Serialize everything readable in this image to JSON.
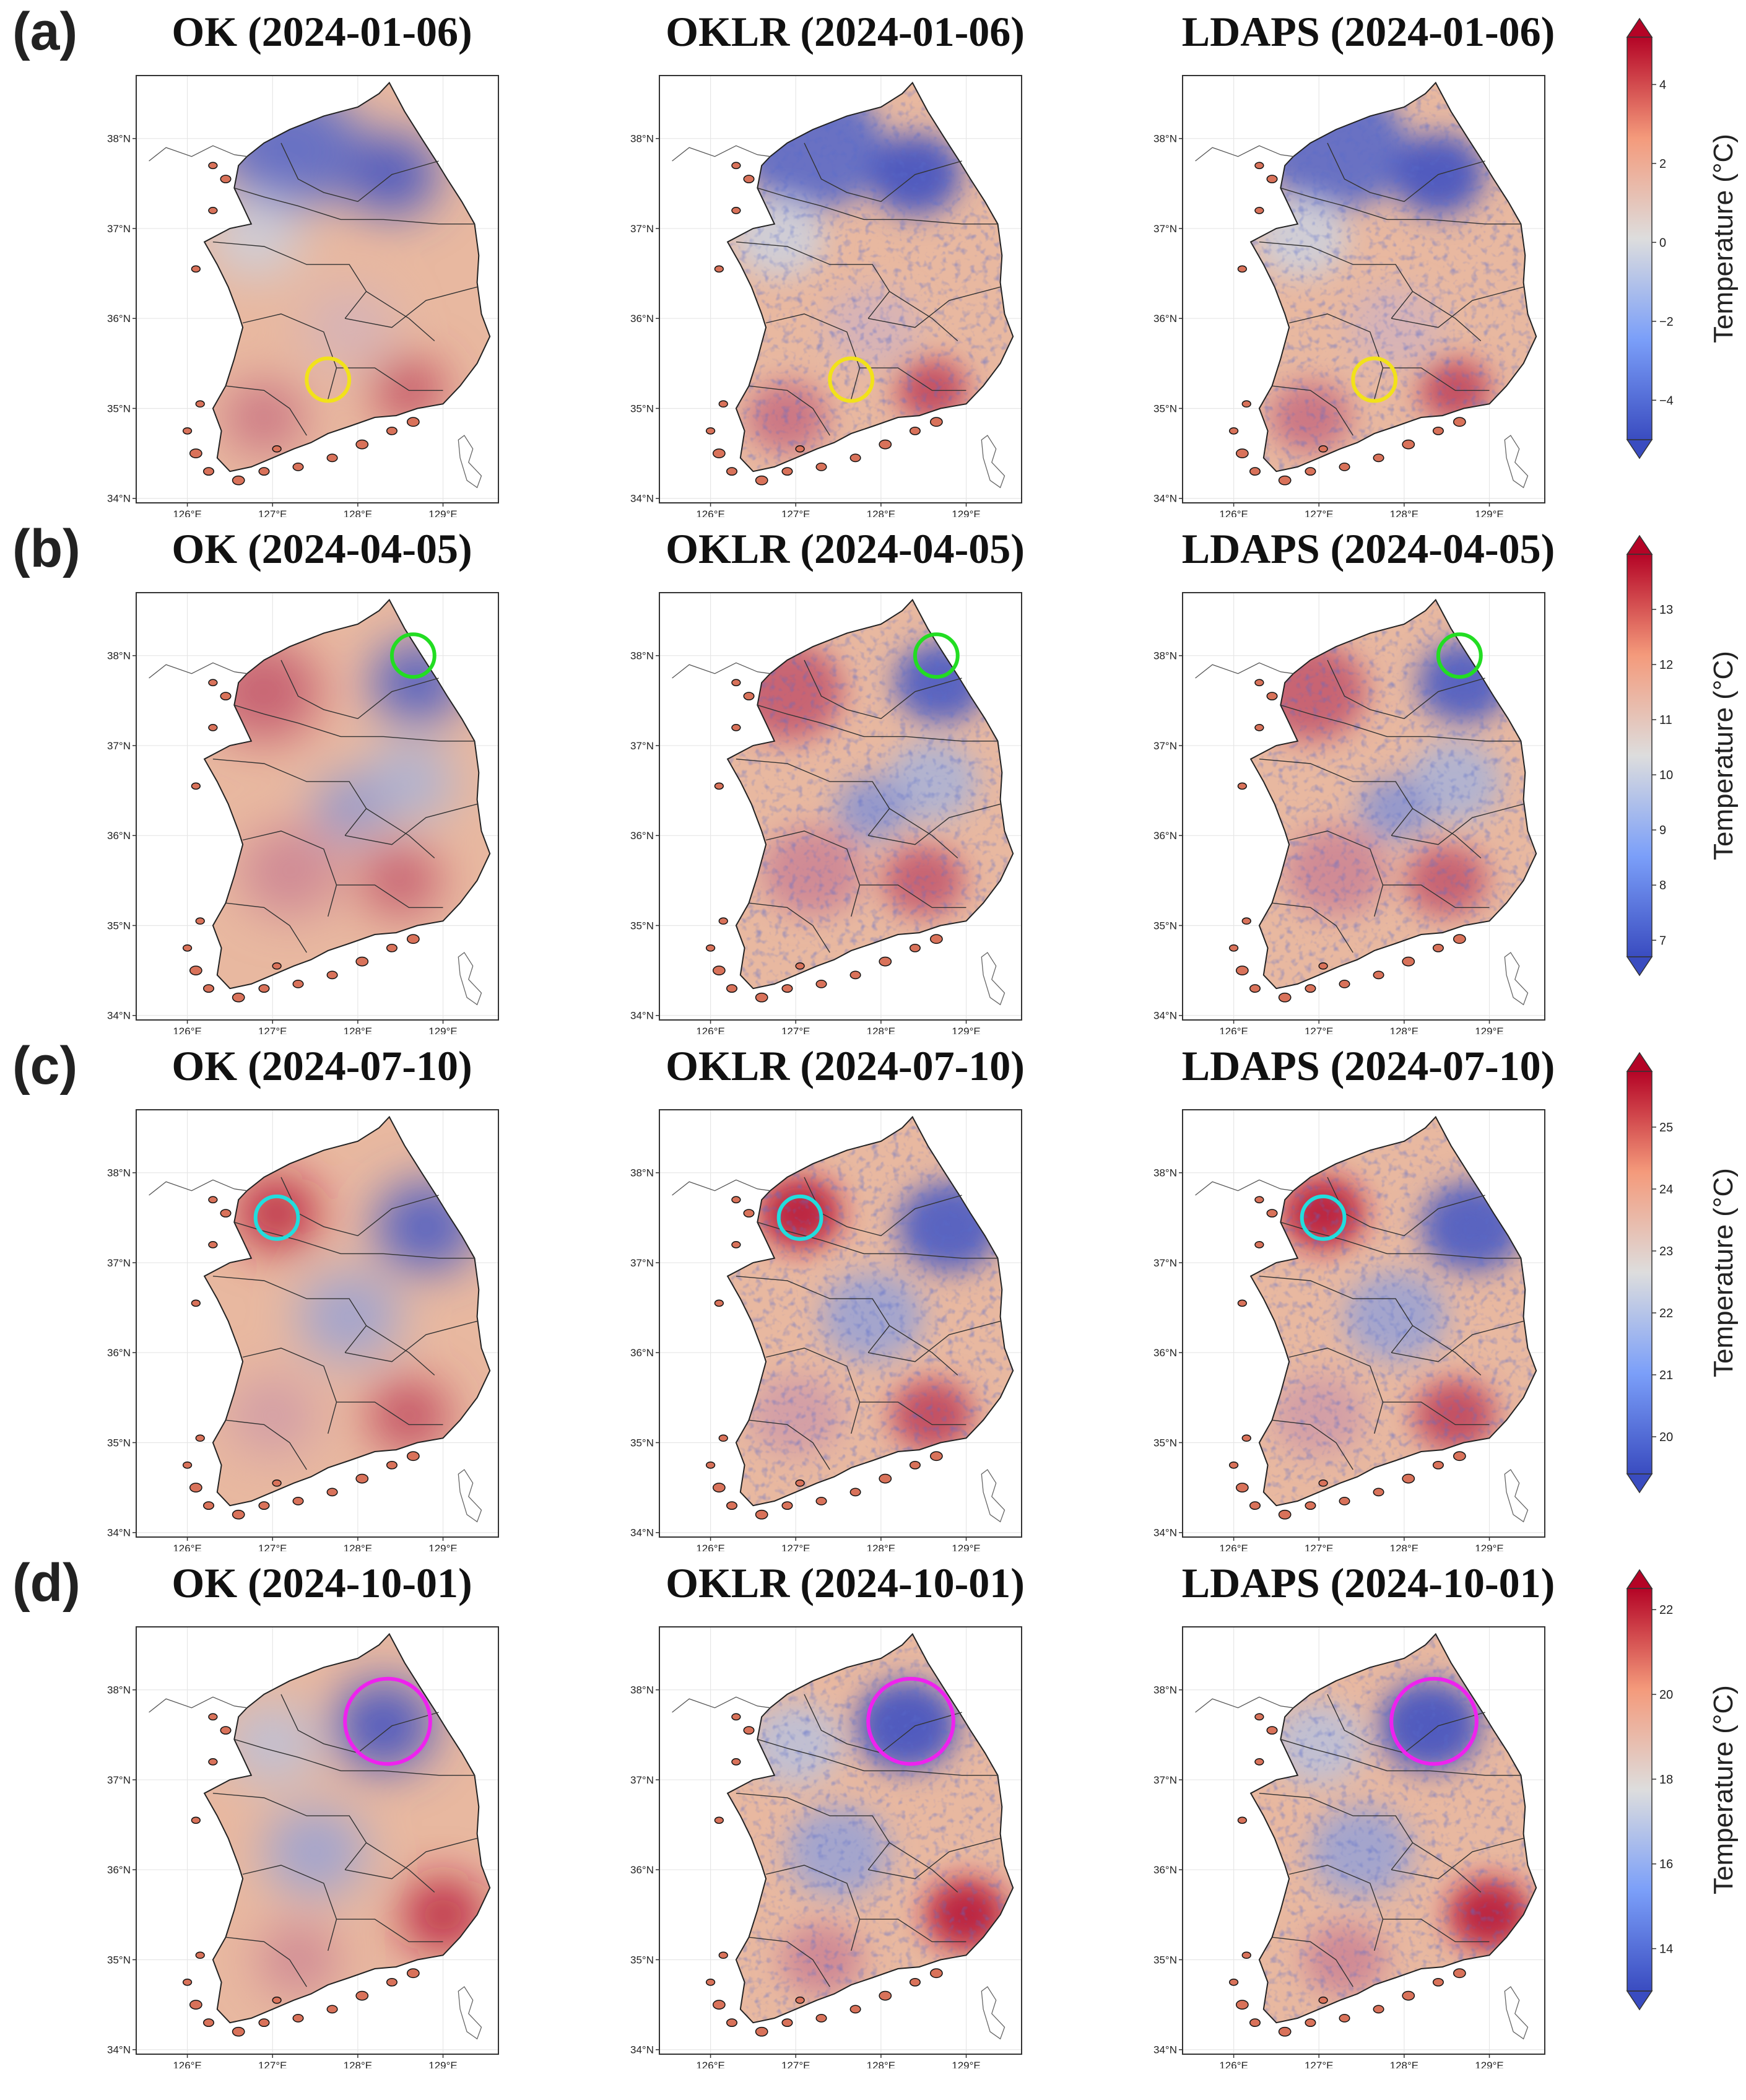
{
  "figure": {
    "rows": [
      {
        "label": "(a)",
        "date": "2024-01-06",
        "panels": [
          {
            "method": "OK",
            "title": "OK (2024-01-06)"
          },
          {
            "method": "OKLR",
            "title": "OKLR (2024-01-06)"
          },
          {
            "method": "LDAPS",
            "title": "LDAPS (2024-01-06)"
          }
        ],
        "highlight": {
          "color": "#f2e21a",
          "center_lon": 127.65,
          "center_lat": 35.32,
          "radius_deg": 0.25
        },
        "colorbar": {
          "label": "Temperature (°C)",
          "ticks": [
            "−4",
            "−2",
            "0",
            "2",
            "4"
          ],
          "tick_values": [
            -4,
            -2,
            0,
            2,
            4
          ],
          "range": [
            -5,
            5.2
          ]
        }
      },
      {
        "label": "(b)",
        "date": "2024-04-05",
        "panels": [
          {
            "method": "OK",
            "title": "OK (2024-04-05)"
          },
          {
            "method": "OKLR",
            "title": "OKLR (2024-04-05)"
          },
          {
            "method": "LDAPS",
            "title": "LDAPS (2024-04-05)"
          }
        ],
        "highlight": {
          "color": "#22dd22",
          "center_lon": 128.65,
          "center_lat": 38.0,
          "radius_deg": 0.25
        },
        "colorbar": {
          "label": "Temperature (°C)",
          "ticks": [
            "7",
            "8",
            "9",
            "10",
            "11",
            "12",
            "13"
          ],
          "tick_values": [
            7,
            8,
            9,
            10,
            11,
            12,
            13
          ],
          "range": [
            6.7,
            14.0
          ]
        }
      },
      {
        "label": "(c)",
        "date": "2024-07-10",
        "panels": [
          {
            "method": "OK",
            "title": "OK (2024-07-10)"
          },
          {
            "method": "OKLR",
            "title": "OKLR (2024-07-10)"
          },
          {
            "method": "LDAPS",
            "title": "LDAPS (2024-07-10)"
          }
        ],
        "highlight": {
          "color": "#22dddd",
          "center_lon": 127.05,
          "center_lat": 37.5,
          "radius_deg": 0.25
        },
        "colorbar": {
          "label": "Temperature (°C)",
          "ticks": [
            "20",
            "21",
            "22",
            "23",
            "24",
            "25"
          ],
          "tick_values": [
            20,
            21,
            22,
            23,
            24,
            25
          ],
          "range": [
            19.4,
            25.9
          ]
        }
      },
      {
        "label": "(d)",
        "date": "2024-10-01",
        "panels": [
          {
            "method": "OK",
            "title": "OK (2024-10-01)"
          },
          {
            "method": "OKLR",
            "title": "OKLR (2024-10-01)"
          },
          {
            "method": "LDAPS",
            "title": "LDAPS (2024-10-01)"
          }
        ],
        "highlight": {
          "color": "#ee22ee",
          "center_lon": 128.35,
          "center_lat": 37.65,
          "radius_deg": 0.5
        },
        "colorbar": {
          "label": "Temperature (°C)",
          "ticks": [
            "14",
            "16",
            "18",
            "20",
            "22"
          ],
          "tick_values": [
            14,
            16,
            18,
            20,
            22
          ],
          "range": [
            13.0,
            22.5
          ]
        }
      }
    ],
    "axes": {
      "x_ticks": [
        "126°E",
        "127°E",
        "128°E",
        "129°E"
      ],
      "x_values": [
        126,
        127,
        128,
        129
      ],
      "y_ticks": [
        "34°N",
        "35°N",
        "36°N",
        "37°N",
        "38°N"
      ],
      "y_values": [
        34,
        35,
        36,
        37,
        38
      ],
      "lon_range": [
        125.4,
        129.65
      ],
      "lat_range": [
        33.95,
        38.7
      ]
    }
  },
  "colors": {
    "cold": "#3a4cc0",
    "neutral": "#dddddd",
    "warm": "#b40426"
  }
}
